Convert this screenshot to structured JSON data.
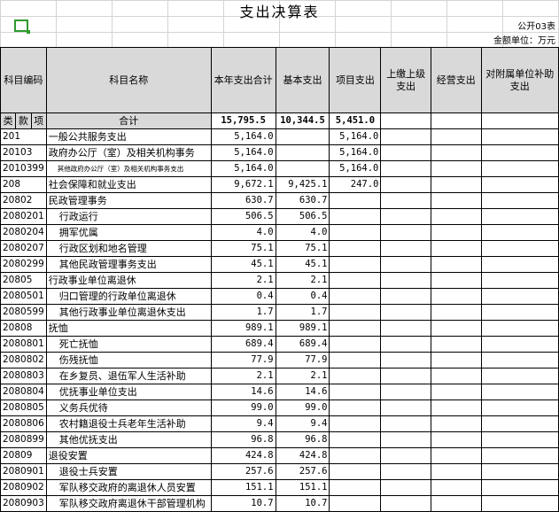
{
  "title": "支出决算表",
  "form_no": "公开03表",
  "unit": "金额单位：万元",
  "columns": {
    "code": "科目编码",
    "name": "科目名称",
    "total": "本年支出合计",
    "basic": "基本支出",
    "project": "项目支出",
    "remit": "上缴上级支出",
    "business": "经营支出",
    "subsidy": "对附属单位补助支出"
  },
  "subheader": {
    "lei": "类",
    "kuan": "款",
    "xiang": "项",
    "sum_label": "合计"
  },
  "totals": {
    "total": "15,795.5",
    "basic": "10,344.5",
    "project": "5,451.0"
  },
  "rows": [
    {
      "code": "201",
      "name": "一般公共服务支出",
      "total": "5,164.0",
      "basic": "",
      "project": "5,164.0"
    },
    {
      "code": "20103",
      "name": "政府办公厅（室）及相关机构事务",
      "total": "5,164.0",
      "basic": "",
      "project": "5,164.0"
    },
    {
      "code": "2010399",
      "name": "其他政府办公厅（室）及相关机构事务支出",
      "total": "5,164.0",
      "basic": "",
      "project": "5,164.0"
    },
    {
      "code": "208",
      "name": "社会保障和就业支出",
      "total": "9,672.1",
      "basic": "9,425.1",
      "project": "247.0"
    },
    {
      "code": "20802",
      "name": "民政管理事务",
      "total": "630.7",
      "basic": "630.7",
      "project": ""
    },
    {
      "code": "2080201",
      "name": "行政运行",
      "total": "506.5",
      "basic": "506.5",
      "project": ""
    },
    {
      "code": "2080204",
      "name": "拥军优属",
      "total": "4.0",
      "basic": "4.0",
      "project": ""
    },
    {
      "code": "2080207",
      "name": "行政区划和地名管理",
      "total": "75.1",
      "basic": "75.1",
      "project": ""
    },
    {
      "code": "2080299",
      "name": "其他民政管理事务支出",
      "total": "45.1",
      "basic": "45.1",
      "project": ""
    },
    {
      "code": "20805",
      "name": "行政事业单位离退休",
      "total": "2.1",
      "basic": "2.1",
      "project": ""
    },
    {
      "code": "2080501",
      "name": "归口管理的行政单位离退休",
      "total": "0.4",
      "basic": "0.4",
      "project": ""
    },
    {
      "code": "2080599",
      "name": "其他行政事业单位离退休支出",
      "total": "1.7",
      "basic": "1.7",
      "project": ""
    },
    {
      "code": "20808",
      "name": "抚恤",
      "total": "989.1",
      "basic": "989.1",
      "project": ""
    },
    {
      "code": "2080801",
      "name": "死亡抚恤",
      "total": "689.4",
      "basic": "689.4",
      "project": ""
    },
    {
      "code": "2080802",
      "name": "伤残抚恤",
      "total": "77.9",
      "basic": "77.9",
      "project": ""
    },
    {
      "code": "2080803",
      "name": "在乡复员、退伍军人生活补助",
      "total": "2.1",
      "basic": "2.1",
      "project": ""
    },
    {
      "code": "2080804",
      "name": "优抚事业单位支出",
      "total": "14.6",
      "basic": "14.6",
      "project": ""
    },
    {
      "code": "2080805",
      "name": "义务兵优待",
      "total": "99.0",
      "basic": "99.0",
      "project": ""
    },
    {
      "code": "2080806",
      "name": "农村籍退役士兵老年生活补助",
      "total": "9.4",
      "basic": "9.4",
      "project": ""
    },
    {
      "code": "2080899",
      "name": "其他优抚支出",
      "total": "96.8",
      "basic": "96.8",
      "project": ""
    },
    {
      "code": "20809",
      "name": "退役安置",
      "total": "424.8",
      "basic": "424.8",
      "project": ""
    },
    {
      "code": "2080901",
      "name": "退役士兵安置",
      "total": "257.6",
      "basic": "257.6",
      "project": ""
    },
    {
      "code": "2080902",
      "name": "军队移交政府的离退休人员安置",
      "total": "151.1",
      "basic": "151.1",
      "project": ""
    },
    {
      "code": "2080903",
      "name": "军队移交政府离退休干部管理机构",
      "total": "10.7",
      "basic": "10.7",
      "project": ""
    }
  ]
}
